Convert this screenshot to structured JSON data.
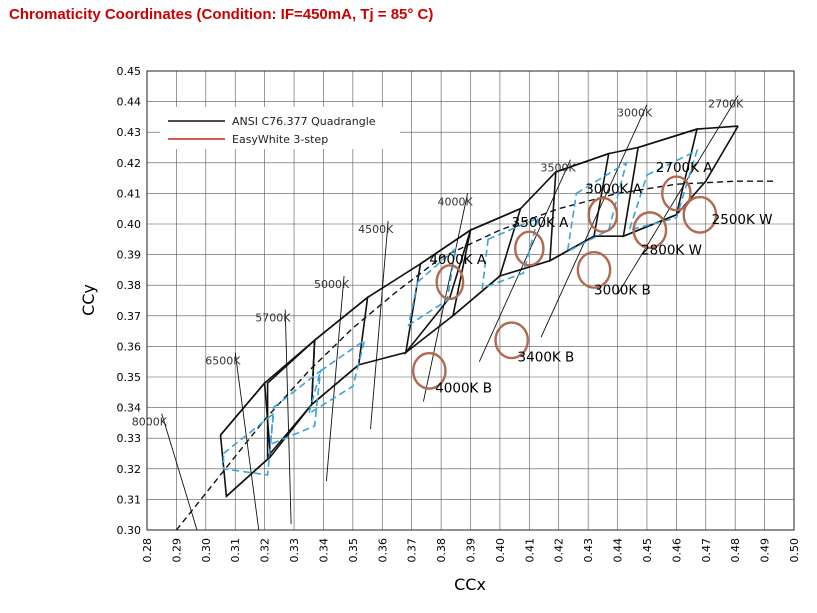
{
  "title": "Chromaticity  Coordinates (Condition: IF=450mA, Tj = 85° C)",
  "colors": {
    "title": "#cc0000",
    "ansi": "#111111",
    "easywhite": "#3aa3d8",
    "legend_easywhite": "#cc2222",
    "ellipse": "#b06a50",
    "grid": "#555555"
  },
  "chart_data": {
    "type": "scatter",
    "title": "",
    "xlabel": "CCx",
    "ylabel": "CCy",
    "xlim": [
      0.28,
      0.5
    ],
    "ylim": [
      0.3,
      0.45
    ],
    "grid": true,
    "legend_position": "top-left",
    "x_ticks": [
      "0.28",
      "0.29",
      "0.30",
      "0.31",
      "0.32",
      "0.33",
      "0.34",
      "0.35",
      "0.36",
      "0.37",
      "0.38",
      "0.39",
      "0.40",
      "0.41",
      "0.42",
      "0.43",
      "0.44",
      "0.45",
      "0.46",
      "0.47",
      "0.48",
      "0.49",
      "0.50"
    ],
    "y_ticks": [
      "0.45",
      "0.44",
      "0.43",
      "0.42",
      "0.41",
      "0.40",
      "0.39",
      "0.38",
      "0.37",
      "0.36",
      "0.35",
      "0.34",
      "0.33",
      "0.32",
      "0.31",
      "0.30"
    ],
    "legend": [
      {
        "label": "ANSI C76.377 Quadrangle",
        "color": "#111111"
      },
      {
        "label": "EasyWhite 3-step",
        "color": "#cc2222"
      }
    ],
    "planckian_locus": [
      [
        0.29,
        0.3
      ],
      [
        0.305,
        0.318
      ],
      [
        0.32,
        0.336
      ],
      [
        0.335,
        0.352
      ],
      [
        0.35,
        0.366
      ],
      [
        0.365,
        0.378
      ],
      [
        0.38,
        0.389
      ],
      [
        0.4,
        0.398
      ],
      [
        0.42,
        0.405
      ],
      [
        0.44,
        0.41
      ],
      [
        0.46,
        0.413
      ],
      [
        0.48,
        0.414
      ],
      [
        0.493,
        0.414
      ]
    ],
    "cct_lines": [
      {
        "label": "8000K",
        "line": [
          [
            0.285,
            0.338
          ],
          [
            0.297,
            0.3
          ]
        ]
      },
      {
        "label": "6500K",
        "line": [
          [
            0.31,
            0.358
          ],
          [
            0.318,
            0.3
          ]
        ]
      },
      {
        "label": "5700K",
        "line": [
          [
            0.327,
            0.372
          ],
          [
            0.329,
            0.302
          ]
        ]
      },
      {
        "label": "5000K",
        "line": [
          [
            0.347,
            0.383
          ],
          [
            0.341,
            0.316
          ]
        ]
      },
      {
        "label": "4500K",
        "line": [
          [
            0.362,
            0.401
          ],
          [
            0.356,
            0.333
          ]
        ]
      },
      {
        "label": "4000K",
        "line": [
          [
            0.389,
            0.41
          ],
          [
            0.374,
            0.342
          ]
        ]
      },
      {
        "label": "3500K",
        "line": [
          [
            0.424,
            0.421
          ],
          [
            0.393,
            0.355
          ]
        ]
      },
      {
        "label": "3000K",
        "line": [
          [
            0.45,
            0.439
          ],
          [
            0.414,
            0.363
          ]
        ]
      },
      {
        "label": "2700K",
        "line": [
          [
            0.481,
            0.442
          ],
          [
            0.44,
            0.377
          ]
        ]
      }
    ],
    "ansi_quadrangles": [
      {
        "label": "6500K",
        "points": [
          [
            0.305,
            0.331
          ],
          [
            0.32,
            0.348
          ],
          [
            0.322,
            0.324
          ],
          [
            0.307,
            0.311
          ]
        ]
      },
      {
        "label": "5700K",
        "points": [
          [
            0.321,
            0.348
          ],
          [
            0.337,
            0.362
          ],
          [
            0.336,
            0.341
          ],
          [
            0.321,
            0.324
          ]
        ]
      },
      {
        "label": "5000K",
        "points": [
          [
            0.337,
            0.362
          ],
          [
            0.355,
            0.376
          ],
          [
            0.352,
            0.354
          ],
          [
            0.336,
            0.341
          ]
        ]
      },
      {
        "label": "4000K",
        "points": [
          [
            0.373,
            0.387
          ],
          [
            0.39,
            0.398
          ],
          [
            0.383,
            0.376
          ],
          [
            0.368,
            0.358
          ]
        ]
      },
      {
        "label": "3500K",
        "points": [
          [
            0.39,
            0.398
          ],
          [
            0.407,
            0.405
          ],
          [
            0.4,
            0.383
          ],
          [
            0.384,
            0.37
          ]
        ]
      },
      {
        "label": "3000K",
        "points": [
          [
            0.419,
            0.417
          ],
          [
            0.437,
            0.423
          ],
          [
            0.432,
            0.396
          ],
          [
            0.417,
            0.388
          ]
        ]
      },
      {
        "label": "2700K",
        "points": [
          [
            0.447,
            0.425
          ],
          [
            0.467,
            0.431
          ],
          [
            0.46,
            0.403
          ],
          [
            0.442,
            0.396
          ]
        ]
      }
    ],
    "ansi_outer_band": {
      "upper": [
        [
          0.305,
          0.331
        ],
        [
          0.32,
          0.348
        ],
        [
          0.337,
          0.362
        ],
        [
          0.355,
          0.376
        ],
        [
          0.373,
          0.387
        ],
        [
          0.39,
          0.398
        ],
        [
          0.407,
          0.405
        ],
        [
          0.419,
          0.417
        ],
        [
          0.437,
          0.423
        ],
        [
          0.447,
          0.425
        ],
        [
          0.467,
          0.431
        ],
        [
          0.481,
          0.432
        ]
      ],
      "lower": [
        [
          0.307,
          0.311
        ],
        [
          0.322,
          0.324
        ],
        [
          0.336,
          0.341
        ],
        [
          0.352,
          0.354
        ],
        [
          0.368,
          0.358
        ],
        [
          0.384,
          0.37
        ],
        [
          0.4,
          0.383
        ],
        [
          0.417,
          0.388
        ],
        [
          0.432,
          0.396
        ],
        [
          0.442,
          0.396
        ],
        [
          0.46,
          0.403
        ],
        [
          0.47,
          0.414
        ],
        [
          0.481,
          0.432
        ]
      ]
    },
    "easywhite_bins": [
      {
        "label": "",
        "points": [
          [
            0.306,
            0.325
          ],
          [
            0.323,
            0.338
          ],
          [
            0.321,
            0.318
          ],
          [
            0.306,
            0.32
          ]
        ]
      },
      {
        "label": "",
        "points": [
          [
            0.323,
            0.34
          ],
          [
            0.339,
            0.352
          ],
          [
            0.337,
            0.334
          ],
          [
            0.322,
            0.328
          ]
        ]
      },
      {
        "label": "",
        "points": [
          [
            0.339,
            0.352
          ],
          [
            0.354,
            0.362
          ],
          [
            0.35,
            0.347
          ],
          [
            0.335,
            0.338
          ]
        ]
      },
      {
        "label": "",
        "points": [
          [
            0.372,
            0.381
          ],
          [
            0.385,
            0.392
          ],
          [
            0.382,
            0.375
          ],
          [
            0.369,
            0.367
          ]
        ]
      },
      {
        "label": "",
        "points": [
          [
            0.396,
            0.395
          ],
          [
            0.413,
            0.402
          ],
          [
            0.408,
            0.384
          ],
          [
            0.394,
            0.379
          ]
        ]
      },
      {
        "label": "",
        "points": [
          [
            0.426,
            0.41
          ],
          [
            0.443,
            0.42
          ],
          [
            0.437,
            0.398
          ],
          [
            0.423,
            0.391
          ]
        ]
      },
      {
        "label": "",
        "points": [
          [
            0.45,
            0.416
          ],
          [
            0.467,
            0.424
          ],
          [
            0.46,
            0.402
          ],
          [
            0.444,
            0.398
          ]
        ]
      }
    ],
    "bins": [
      {
        "label": "4000K A",
        "center": [
          0.383,
          0.381
        ],
        "rx": 0.0045,
        "ry": 0.0055,
        "label_at": [
          0.376,
          0.387
        ]
      },
      {
        "label": "4000K B",
        "center": [
          0.376,
          0.352
        ],
        "rx": 0.0055,
        "ry": 0.0058,
        "label_at": [
          0.378,
          0.345
        ]
      },
      {
        "label": "3500K A",
        "center": [
          0.41,
          0.392
        ],
        "rx": 0.0048,
        "ry": 0.0055,
        "label_at": [
          0.404,
          0.399
        ]
      },
      {
        "label": "3400K B",
        "center": [
          0.404,
          0.362
        ],
        "rx": 0.0055,
        "ry": 0.0058,
        "label_at": [
          0.406,
          0.355
        ]
      },
      {
        "label": "3000K A",
        "center": [
          0.435,
          0.403
        ],
        "rx": 0.0048,
        "ry": 0.0055,
        "label_at": [
          0.429,
          0.41
        ]
      },
      {
        "label": "3000K B",
        "center": [
          0.432,
          0.385
        ],
        "rx": 0.0055,
        "ry": 0.0058,
        "label_at": [
          0.432,
          0.377
        ]
      },
      {
        "label": "2700K A",
        "center": [
          0.46,
          0.41
        ],
        "rx": 0.0048,
        "ry": 0.0055,
        "label_at": [
          0.453,
          0.417
        ]
      },
      {
        "label": "2800K W",
        "center": [
          0.451,
          0.398
        ],
        "rx": 0.0055,
        "ry": 0.0058,
        "label_at": [
          0.448,
          0.39
        ]
      },
      {
        "label": "2500K W",
        "center": [
          0.468,
          0.403
        ],
        "rx": 0.0055,
        "ry": 0.0058,
        "label_at": [
          0.472,
          0.4
        ]
      }
    ]
  }
}
